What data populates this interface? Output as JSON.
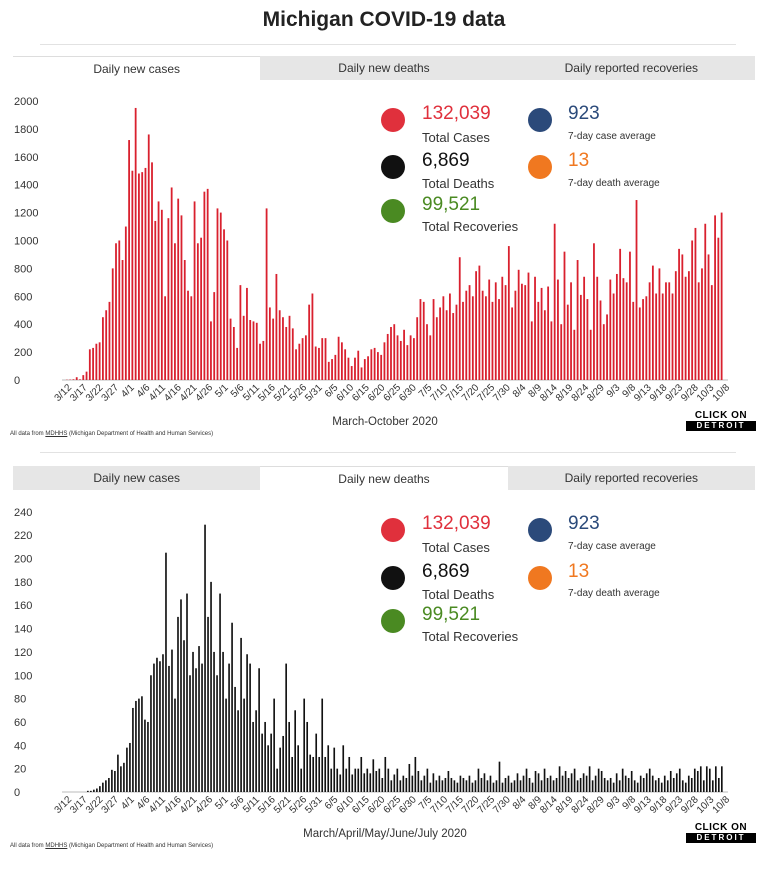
{
  "title": "Michigan COVID-19 data",
  "tabs": [
    "Daily new cases",
    "Daily new deaths",
    "Daily reported recoveries"
  ],
  "stats": {
    "total_cases": {
      "value": "132,039",
      "label": "Total Cases"
    },
    "total_deaths": {
      "value": "6,869",
      "label": "Total Deaths"
    },
    "total_recoveries": {
      "value": "99,521",
      "label": "Total Recoveries"
    },
    "case_avg": {
      "value": "923",
      "label": "7-day case average"
    },
    "death_avg": {
      "value": "13",
      "label": "7-day death average"
    }
  },
  "colors": {
    "cases": "#e0303c",
    "deaths": "#111111",
    "recoveries": "#4a8a22",
    "case_avg": "#2b4a7a",
    "death_avg": "#f07820",
    "bars_cases": "#d9202e",
    "bars_deaths": "#111111"
  },
  "source_prefix": "All data from ",
  "source_link": "MDHHS",
  "source_suffix": " (Michigan Department of Health and Human Services)",
  "logo": {
    "line1": "CLICK ON",
    "line2": "DETROIT"
  },
  "chart_data": [
    {
      "type": "bar",
      "series": [
        {
          "values": [
            2,
            3,
            5,
            20,
            5,
            35,
            60,
            220,
            230,
            260,
            270,
            450,
            500,
            560,
            800,
            980,
            1000,
            860,
            1100,
            1720,
            1500,
            1950,
            1480,
            1490,
            1520,
            1760,
            1560,
            1140,
            1280,
            1220,
            600,
            1160,
            1380,
            980,
            1300,
            1180,
            860,
            640,
            600,
            1280,
            980,
            1020,
            1350,
            1370,
            420,
            630,
            1230,
            1200,
            1080,
            1000,
            440,
            380,
            230,
            680,
            460,
            660,
            430,
            420,
            410,
            260,
            280,
            1230,
            520,
            440,
            760,
            500,
            450,
            380,
            460,
            370,
            220,
            260,
            300,
            320,
            540,
            620,
            240,
            230,
            300,
            300,
            130,
            150,
            180,
            310,
            270,
            220,
            160,
            100,
            160,
            210,
            90,
            150,
            170,
            220,
            230,
            200,
            180,
            270,
            330,
            380,
            400,
            320,
            280,
            360,
            250,
            320,
            300,
            450,
            580,
            560,
            400,
            320,
            580,
            450,
            520,
            600,
            500,
            620,
            480,
            540,
            880,
            560,
            640,
            680,
            600,
            780,
            820,
            640,
            600,
            720,
            560,
            700,
            580,
            740,
            680,
            960,
            520,
            640,
            790,
            690,
            680,
            770,
            420,
            740,
            560,
            660,
            500,
            670,
            420,
            1120,
            720,
            400,
            920,
            540,
            700,
            360,
            860,
            610,
            740,
            580,
            360,
            980,
            740,
            570,
            400,
            470,
            720,
            620,
            760,
            940,
            730,
            700,
            920,
            560,
            1290,
            520,
            580,
            600,
            700,
            820,
            620,
            800,
            620,
            700,
            700,
            620,
            780,
            940,
            900,
            740,
            780,
            1000,
            1090,
            700,
            800,
            1120,
            900,
            680,
            1180,
            1020,
            1200
          ]
        }
      ],
      "x_tick_labels": [
        "3/12",
        "3/17",
        "3/22",
        "3/27",
        "4/1",
        "4/6",
        "4/11",
        "4/16",
        "4/21",
        "4/26",
        "5/1",
        "5/6",
        "5/11",
        "5/16",
        "5/21",
        "5/26",
        "5/31",
        "6/5",
        "6/10",
        "6/15",
        "6/20",
        "6/25",
        "6/30",
        "7/5",
        "7/10",
        "7/15",
        "7/20",
        "7/25",
        "7/30",
        "8/4",
        "8/9",
        "8/14",
        "8/19",
        "8/24",
        "8/29",
        "9/3",
        "9/8",
        "9/13",
        "9/18",
        "9/23",
        "9/28",
        "10/3",
        "10/8"
      ],
      "y_ticks": [
        0,
        200,
        400,
        600,
        800,
        1000,
        1200,
        1400,
        1600,
        1800,
        2000
      ],
      "ylim": [
        0,
        2050
      ],
      "xlabel": "March-October 2020"
    },
    {
      "type": "bar",
      "series": [
        {
          "values": [
            0,
            0,
            0,
            0,
            0,
            0,
            0,
            1,
            1,
            2,
            3,
            5,
            8,
            10,
            12,
            19,
            18,
            32,
            22,
            25,
            38,
            42,
            72,
            78,
            80,
            82,
            62,
            60,
            100,
            110,
            115,
            112,
            118,
            205,
            108,
            122,
            80,
            150,
            165,
            130,
            170,
            100,
            120,
            106,
            125,
            110,
            229,
            150,
            180,
            120,
            100,
            170,
            120,
            80,
            110,
            145,
            90,
            70,
            132,
            80,
            118,
            110,
            60,
            70,
            106,
            50,
            60,
            40,
            50,
            80,
            20,
            38,
            48,
            110,
            60,
            30,
            70,
            40,
            20,
            80,
            60,
            32,
            30,
            50,
            30,
            80,
            30,
            40,
            20,
            38,
            20,
            15,
            40,
            20,
            30,
            15,
            20,
            20,
            30,
            16,
            20,
            16,
            28,
            18,
            20,
            12,
            30,
            20,
            10,
            15,
            20,
            10,
            14,
            12,
            24,
            14,
            30,
            18,
            10,
            14,
            20,
            8,
            16,
            10,
            14,
            10,
            12,
            18,
            12,
            10,
            8,
            14,
            12,
            10,
            14,
            8,
            10,
            20,
            12,
            16,
            10,
            14,
            8,
            10,
            26,
            8,
            12,
            14,
            8,
            10,
            16,
            10,
            14,
            20,
            12,
            8,
            18,
            16,
            10,
            20,
            12,
            14,
            10,
            12,
            22,
            14,
            18,
            12,
            16,
            20,
            10,
            12,
            16,
            14,
            22,
            10,
            14,
            20,
            18,
            12,
            10,
            12,
            8,
            16,
            10,
            20,
            14,
            12,
            18,
            10,
            8,
            14,
            12,
            16,
            20,
            14,
            10,
            12,
            8,
            14,
            10,
            18,
            12,
            16,
            20,
            10,
            8,
            14,
            12,
            20,
            18,
            22,
            10,
            22,
            20,
            10,
            22,
            12,
            22
          ]
        }
      ],
      "x_tick_labels": [
        "3/12",
        "3/17",
        "3/22",
        "3/27",
        "4/1",
        "4/6",
        "4/11",
        "4/16",
        "4/21",
        "4/26",
        "5/1",
        "5/6",
        "5/11",
        "5/16",
        "5/21",
        "5/26",
        "5/31",
        "6/5",
        "6/10",
        "6/15",
        "6/20",
        "6/25",
        "6/30",
        "7/5",
        "7/10",
        "7/15",
        "7/20",
        "7/25",
        "7/30",
        "8/4",
        "8/9",
        "8/14",
        "8/19",
        "8/24",
        "8/29",
        "9/3",
        "9/8",
        "9/13",
        "9/18",
        "9/23",
        "9/28",
        "10/3",
        "10/8"
      ],
      "y_ticks": [
        0,
        20,
        40,
        60,
        80,
        100,
        120,
        140,
        160,
        180,
        200,
        220,
        240
      ],
      "ylim": [
        0,
        245
      ],
      "xlabel": "March/April/May/June/July 2020"
    }
  ]
}
